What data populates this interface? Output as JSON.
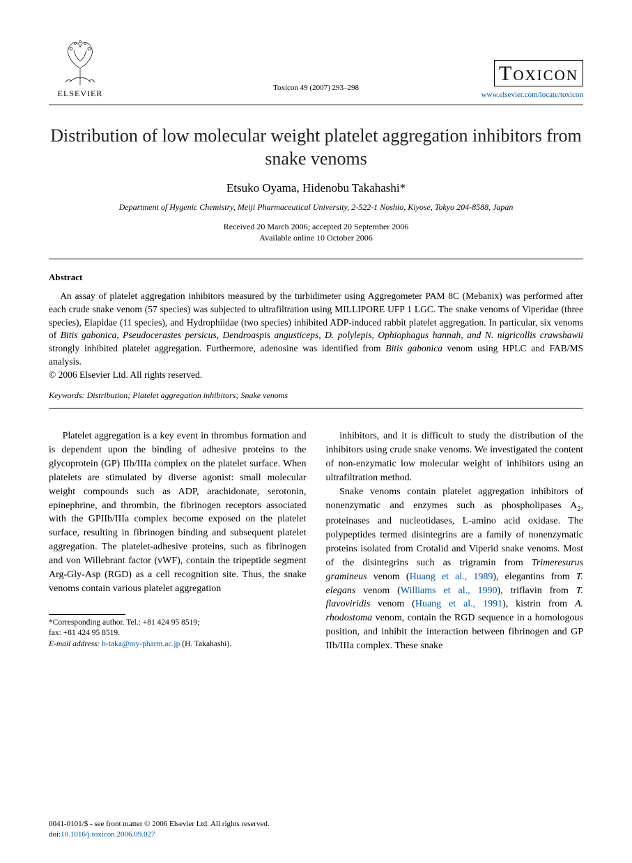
{
  "header": {
    "publisher_label": "ELSEVIER",
    "citation": "Toxicon 49 (2007) 293–298",
    "journal_name": "Toxicon",
    "journal_url": "www.elsevier.com/locate/toxicon"
  },
  "article": {
    "title": "Distribution of low molecular weight platelet aggregation inhibitors from snake venoms",
    "authors": "Etsuko Oyama, Hidenobu Takahashi*",
    "affiliation": "Department of Hygenic Chemistry, Meiji Pharmaceutical University, 2-522-1 Noshio, Kiyose, Tokyo 204-8588, Japan",
    "received": "Received 20 March 2006; accepted 20 September 2006",
    "available": "Available online 10 October 2006"
  },
  "abstract": {
    "label": "Abstract",
    "body_html": "An assay of platelet aggregation inhibitors measured by the turbidimeter using Aggregometer PAM 8C (Mebanix) was performed after each crude snake venom (57 species) was subjected to ultrafiltration using MILLIPORE UFP 1 LGC. The snake venoms of Viperidae (three species), Elapidae (11 species), and Hydrophiidae (two species) inhibited ADP-induced rabbit platelet aggregation. In particular, six venoms of <span class='ital'>Bitis gabonica, Pseudocerastes persicus, Dendroaspis angusticeps, D. polylepis, Ophiophagus hannah, and N. nigricollis crawshawii</span> strongly inhibited platelet aggregation. Furthermore, adenosine was identified from <span class='ital'>Bitis gabonica</span> venom using HPLC and FAB/MS analysis.",
    "copyright": "© 2006 Elsevier Ltd. All rights reserved.",
    "keywords_label": "Keywords:",
    "keywords": " Distribution; Platelet aggregation inhibitors; Snake venoms"
  },
  "body": {
    "col1_p1": "Platelet aggregation is a key event in thrombus formation and is dependent upon the binding of adhesive proteins to the glycoprotein (GP) IIb/IIIa complex on the platelet surface. When platelets are stimulated by diverse agonist: small molecular weight compounds such as ADP, arachidonate, serotonin, epinephrine, and thrombin, the fibrinogen receptors associated with the GPIIb/IIIa complex become exposed on the platelet surface, resulting in fibrinogen binding and subsequent platelet aggregation. The platelet-adhesive proteins, such as fibrinogen and von Willebrant factor (vWF), contain the tripeptide segment Arg-Gly-Asp (RGD) as a cell recognition site. Thus, the snake venoms contain various platelet aggregation",
    "col2_p1": "inhibitors, and it is difficult to study the distribution of the inhibitors using crude snake venoms. We investigated the content of non-enzymatic low molecular weight of inhibitors using an ultrafiltration method.",
    "col2_p2_html": "Snake venoms contain platelet aggregation inhibitors of nonenzymatic and enzymes such as phospholipases A<span class='sub'>2</span>, proteinases and nucleotidases, L-amino acid oxidase. The polypeptides termed disintegrins are a family of nonenzymatic proteins isolated from Crotalid and Viperid snake venoms. Most of the disintegrins such as trigramin from <span class='ital'>Trimeresurus gramineus</span> venom (<span class='link'>Huang et al., 1989</span>), elegantins from <span class='ital'>T. elegans</span> venom (<span class='link'>Williams et al., 1990</span>), triflavin from <span class='ital'>T. flavoviridis</span> venom (<span class='link'>Huang et al., 1991</span>), kistrin from <span class='ital'>A. rhodostoma</span> venom, contain the RGD sequence in a homologous position, and inhibit the interaction between fibrinogen and GP IIb/IIIa complex. These snake"
  },
  "footnote": {
    "corr": "*Corresponding author. Tel.: +81 424 95 8519;",
    "fax": "fax: +81 424 95 8519.",
    "email_label": "E-mail address:",
    "email": " h-taka@my-pharm.ac.jp",
    "email_tail": " (H. Takahashi)."
  },
  "footer": {
    "line1": "0041-0101/$ - see front matter © 2006 Elsevier Ltd. All rights reserved.",
    "doi_label": "doi:",
    "doi": "10.1016/j.toxicon.2006.09.027"
  },
  "colors": {
    "link": "#0054a6",
    "text": "#000000",
    "background": "#ffffff"
  },
  "typography": {
    "title_fontsize": 26,
    "authors_fontsize": 17,
    "body_fontsize": 14,
    "abstract_fontsize": 13.5,
    "footnote_fontsize": 11.5,
    "journal_fontsize": 30
  }
}
